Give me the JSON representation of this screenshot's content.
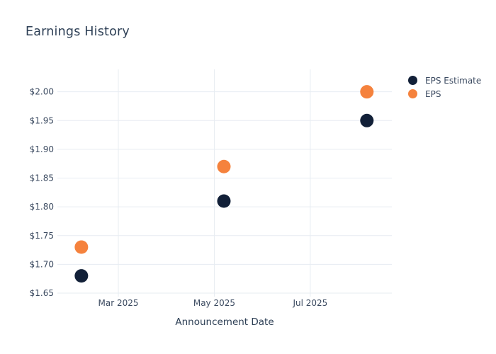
{
  "page": {
    "background": "#ffffff"
  },
  "chart_data": {
    "type": "scatter",
    "title": "Earnings History",
    "xlabel": "Announcement Date",
    "ylabel": "",
    "legend_position": "top-right",
    "grid": true,
    "grid_color": "#e7ecf2",
    "tick_text_color": "#3b4a60",
    "title_color": "#2d3f55",
    "x_axis": {
      "unit": "month-of-2025-decimal",
      "range": [
        1.73,
        8.7
      ],
      "ticks": [
        {
          "v": 3,
          "label": "Mar 2025"
        },
        {
          "v": 5,
          "label": "May 2025"
        },
        {
          "v": 7,
          "label": "Jul 2025"
        }
      ]
    },
    "y_axis": {
      "range": [
        1.65,
        2.039
      ],
      "ticks": [
        {
          "v": 1.65,
          "label": "$1.65"
        },
        {
          "v": 1.7,
          "label": "$1.70"
        },
        {
          "v": 1.75,
          "label": "$1.75"
        },
        {
          "v": 1.8,
          "label": "$1.80"
        },
        {
          "v": 1.85,
          "label": "$1.85"
        },
        {
          "v": 1.9,
          "label": "$1.90"
        },
        {
          "v": 1.95,
          "label": "$1.95"
        },
        {
          "v": 2.0,
          "label": "$2.00"
        }
      ]
    },
    "marker": {
      "radius": 9.5,
      "legend_diameter": 13
    },
    "series": [
      {
        "name": "EPS Estimate",
        "color": "#122038",
        "points": [
          {
            "x": 2.23,
            "y": 1.68
          },
          {
            "x": 5.2,
            "y": 1.81
          },
          {
            "x": 8.18,
            "y": 1.95
          }
        ]
      },
      {
        "name": "EPS",
        "color": "#f5823d",
        "points": [
          {
            "x": 2.23,
            "y": 1.73
          },
          {
            "x": 5.2,
            "y": 1.87
          },
          {
            "x": 8.18,
            "y": 2.0
          }
        ]
      }
    ]
  }
}
